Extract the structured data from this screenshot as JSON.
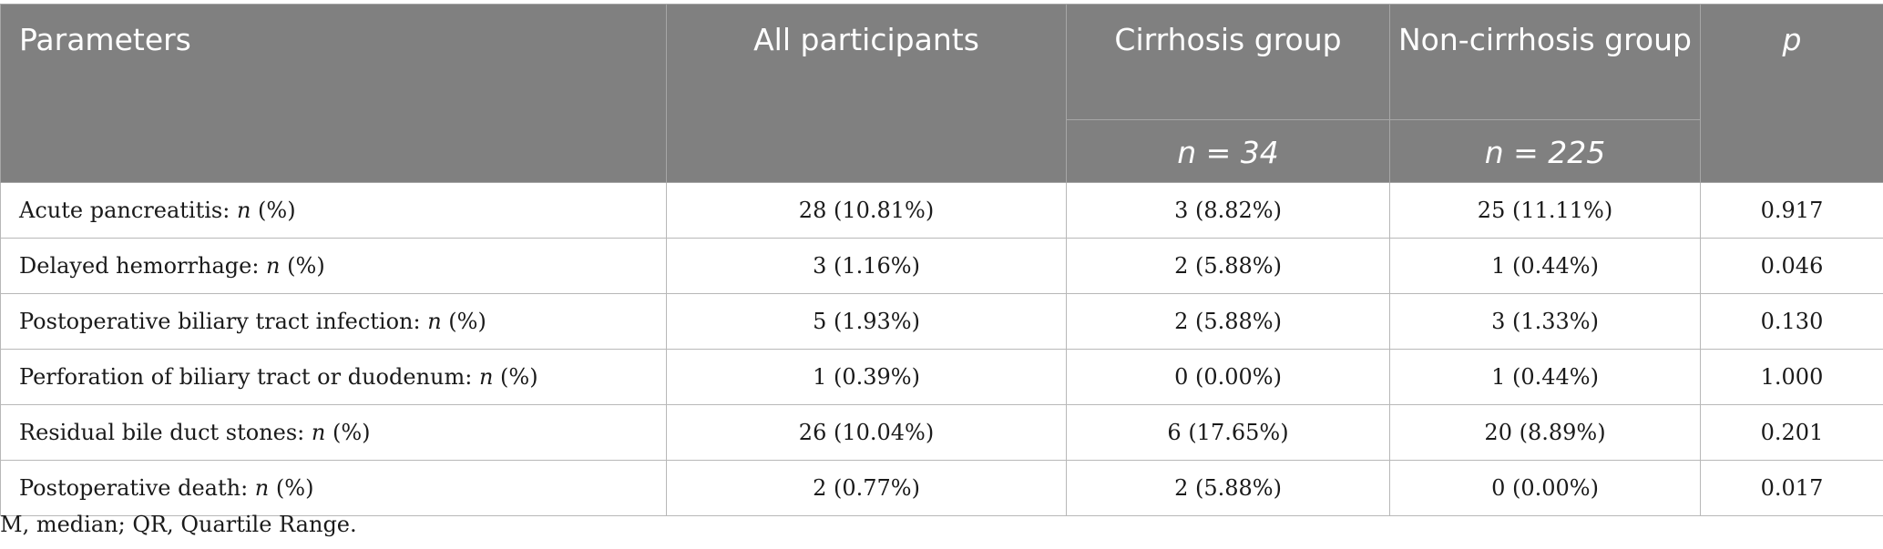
{
  "table": {
    "headers": {
      "parameters": "Parameters",
      "all": "All participants",
      "cirrhosis": "Cirrhosis group",
      "non_cirrhosis": "Non-cirrhosis group",
      "p": "p",
      "cirrhosis_n": "n = 34",
      "non_cirrhosis_n": "n = 225"
    },
    "rows": [
      {
        "label": "Acute pancreatitis: ",
        "unit": " (%)",
        "all": "28 (10.81%)",
        "cirrhosis": "3 (8.82%)",
        "non_cirrhosis": "25 (11.11%)",
        "p": "0.917"
      },
      {
        "label": "Delayed hemorrhage: ",
        "unit": " (%)",
        "all": "3 (1.16%)",
        "cirrhosis": "2 (5.88%)",
        "non_cirrhosis": "1 (0.44%)",
        "p": "0.046"
      },
      {
        "label": "Postoperative biliary tract infection: ",
        "unit": " (%)",
        "all": "5 (1.93%)",
        "cirrhosis": "2 (5.88%)",
        "non_cirrhosis": "3 (1.33%)",
        "p": "0.130"
      },
      {
        "label": "Perforation of biliary tract or duodenum: ",
        "unit": " (%)",
        "all": "1 (0.39%)",
        "cirrhosis": "0 (0.00%)",
        "non_cirrhosis": "1 (0.44%)",
        "p": "1.000"
      },
      {
        "label": "Residual bile duct stones: ",
        "unit": " (%)",
        "all": "26 (10.04%)",
        "cirrhosis": "6 (17.65%)",
        "non_cirrhosis": "20 (8.89%)",
        "p": "0.201"
      },
      {
        "label": "Postoperative death: ",
        "unit": " (%)",
        "all": "2 (0.77%)",
        "cirrhosis": "2 (5.88%)",
        "non_cirrhosis": "0 (0.00%)",
        "p": "0.017"
      }
    ],
    "n_symbol": "n"
  },
  "footnote": "M, median; QR, Quartile Range."
}
